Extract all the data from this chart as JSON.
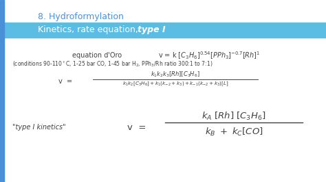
{
  "title_line1": "8. Hydroformylation",
  "title_line2": "Kinetics, rate equation, ",
  "title_italic": "type I",
  "title_color": "#4a90d9",
  "subtitle_bg_color": "#5bbce4",
  "subtitle_text_color": "#ffffff",
  "bg_color": "#ffffff",
  "left_bar_color": "#4a90d9",
  "text_color": "#404040",
  "fraction_line_color": "#404040",
  "type1_label": "\"type I kinetics\"",
  "fig_width": 4.74,
  "fig_height": 2.66,
  "dpi": 100
}
